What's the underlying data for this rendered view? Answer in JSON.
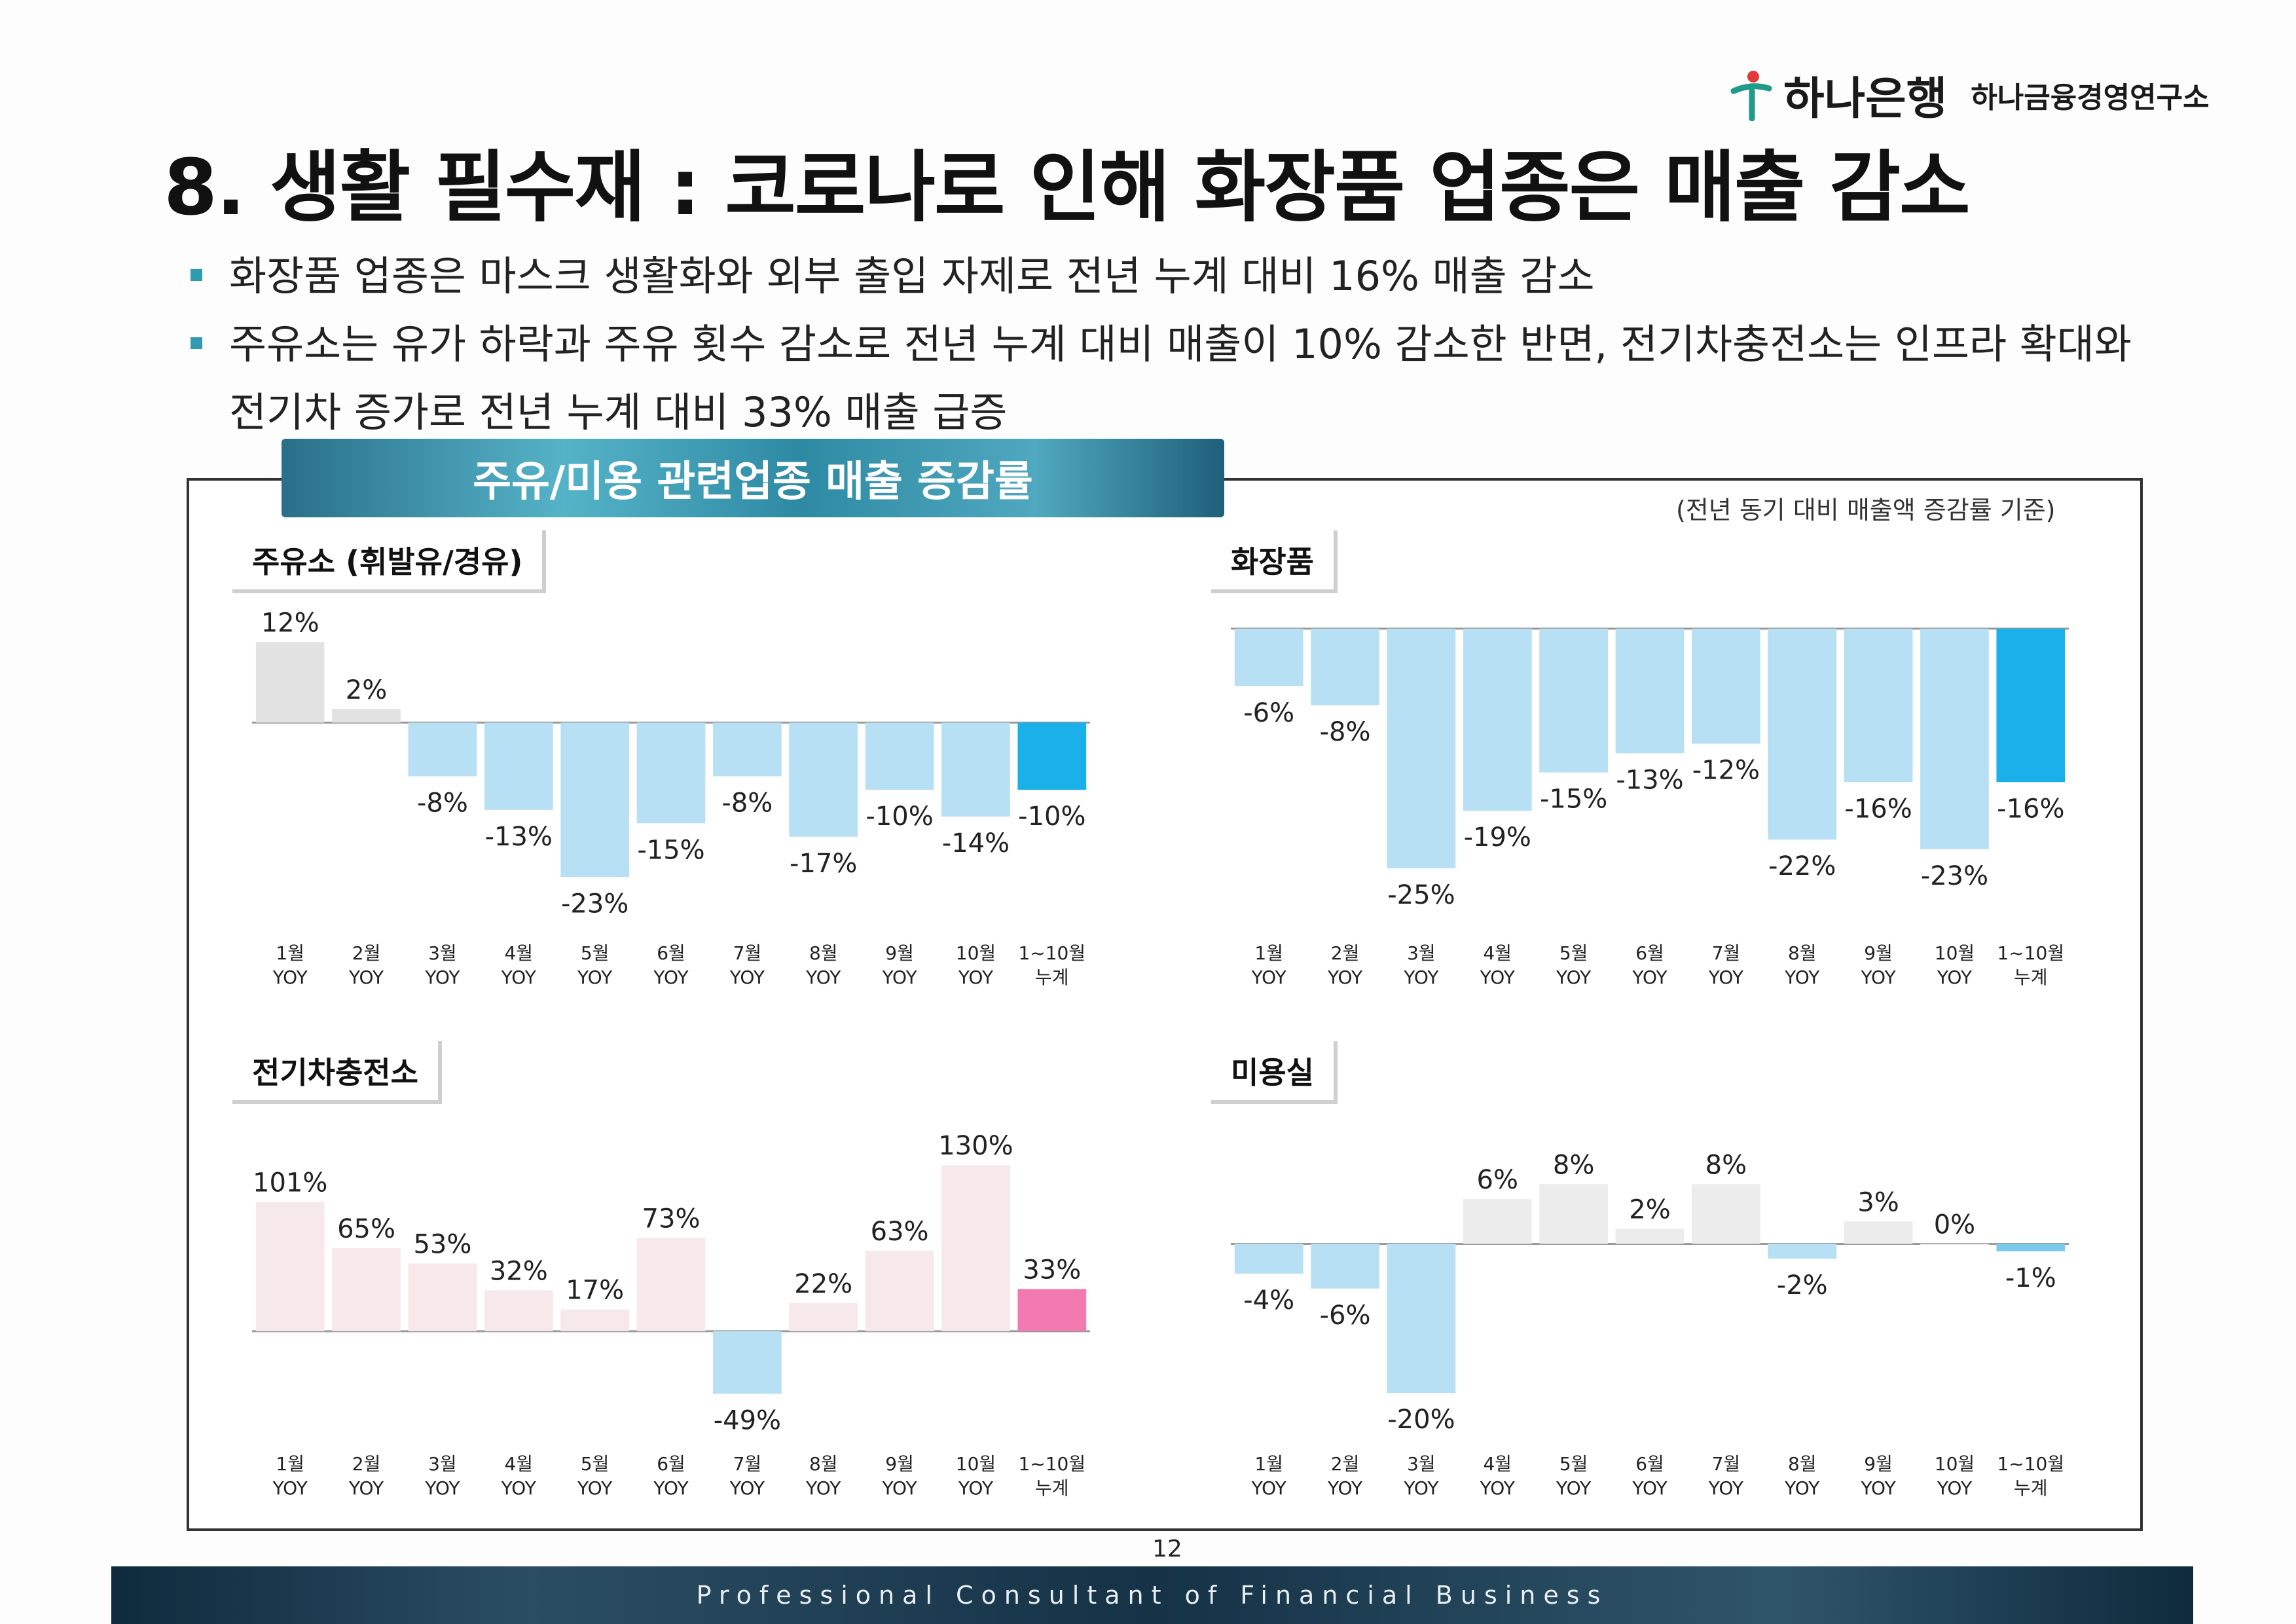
{
  "header": {
    "logo_name": "하나은행",
    "logo_sub": "하나금융경영연구소",
    "title": "8. 생활 필수재 : 코로나로 인해 화장품 업종은 매출 감소"
  },
  "bullets": [
    "화장품 업종은 마스크 생활화와 외부 출입 자제로 전년 누계 대비 16% 매출 감소",
    "주유소는 유가 하락과 주유 횟수 감소로 전년 누계 대비 매출이 10% 감소한 반면, 전기차충전소는 인프라 확대와 전기차 증가로 전년 누계 대비 33% 매출 급증"
  ],
  "panel": {
    "title": "주유/미용 관련업종 매출 증감률",
    "note": "(전년 동기 대비 매출액 증감률 기준)"
  },
  "page_number": "12",
  "footer": "Professional Consultant of Financial Business",
  "chart_data": [
    {
      "type": "bar",
      "title": "주유소 (휘발유/경유)",
      "categories": [
        "1월 YOY",
        "2월 YOY",
        "3월 YOY",
        "4월 YOY",
        "5월 YOY",
        "6월 YOY",
        "7월 YOY",
        "8월 YOY",
        "9월 YOY",
        "10월 YOY",
        "1~10월 누계"
      ],
      "values": [
        12,
        2,
        -8,
        -13,
        -23,
        -15,
        -8,
        -17,
        -10,
        -14,
        -10
      ],
      "labels": [
        "12%",
        "2%",
        "-8%",
        "-13%",
        "-23%",
        "-15%",
        "-8%",
        "-17%",
        "-10%",
        "-14%",
        "-10%"
      ],
      "ylim": [
        -26,
        14
      ],
      "colors": {
        "positive": "#e2e2e2",
        "negative": "#b8e0f4",
        "cumulative": "#1ab0ea"
      }
    },
    {
      "type": "bar",
      "title": "화장품",
      "categories": [
        "1월 YOY",
        "2월 YOY",
        "3월 YOY",
        "4월 YOY",
        "5월 YOY",
        "6월 YOY",
        "7월 YOY",
        "8월 YOY",
        "9월 YOY",
        "10월 YOY",
        "1~10월 누계"
      ],
      "values": [
        -6,
        -8,
        -25,
        -19,
        -15,
        -13,
        -12,
        -22,
        -16,
        -23,
        -16
      ],
      "labels": [
        "-6%",
        "-8%",
        "-25%",
        "-19%",
        "-15%",
        "-13%",
        "-12%",
        "-22%",
        "-16%",
        "-23%",
        "-16%"
      ],
      "ylim": [
        -28,
        0
      ],
      "colors": {
        "positive": "#e2e2e2",
        "negative": "#b8e0f4",
        "cumulative": "#1ab0ea"
      }
    },
    {
      "type": "bar",
      "title": "전기차충전소",
      "categories": [
        "1월 YOY",
        "2월 YOY",
        "3월 YOY",
        "4월 YOY",
        "5월 YOY",
        "6월 YOY",
        "7월 YOY",
        "8월 YOY",
        "9월 YOY",
        "10월 YOY",
        "1~10월 누계"
      ],
      "values": [
        101,
        65,
        53,
        32,
        17,
        73,
        -49,
        22,
        63,
        130,
        33
      ],
      "labels": [
        "101%",
        "65%",
        "53%",
        "32%",
        "17%",
        "73%",
        "-49%",
        "22%",
        "63%",
        "130%",
        "33%"
      ],
      "ylim": [
        -60,
        150
      ],
      "colors": {
        "positive": "#f7e8ec",
        "negative": "#b8e0f4",
        "cumulative": "#f27ab0"
      }
    },
    {
      "type": "bar",
      "title": "미용실",
      "categories": [
        "1월 YOY",
        "2월 YOY",
        "3월 YOY",
        "4월 YOY",
        "5월 YOY",
        "6월 YOY",
        "7월 YOY",
        "8월 YOY",
        "9월 YOY",
        "10월 YOY",
        "1~10월 누계"
      ],
      "values": [
        -4,
        -6,
        -20,
        6,
        8,
        2,
        8,
        -2,
        3,
        0,
        -1
      ],
      "labels": [
        "-4%",
        "-6%",
        "-20%",
        "6%",
        "8%",
        "2%",
        "8%",
        "-2%",
        "3%",
        "0%",
        "-1%"
      ],
      "ylim": [
        -22,
        14
      ],
      "colors": {
        "positive": "#ececec",
        "negative": "#b8e0f4",
        "cumulative": "#7cc9ec"
      }
    }
  ]
}
